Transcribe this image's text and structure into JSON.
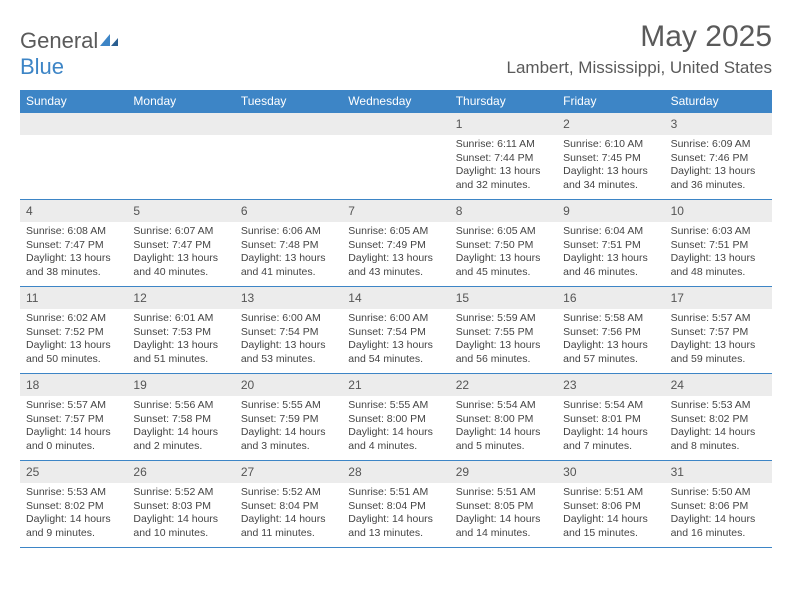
{
  "logo": {
    "general": "General",
    "blue": "Blue"
  },
  "title": "May 2025",
  "location": "Lambert, Mississippi, United States",
  "weekdays": [
    "Sunday",
    "Monday",
    "Tuesday",
    "Wednesday",
    "Thursday",
    "Friday",
    "Saturday"
  ],
  "colors": {
    "header_bg": "#3d85c6",
    "daynum_bg": "#ececec",
    "rule": "#3d85c6",
    "text": "#444444"
  },
  "weeks": [
    [
      null,
      null,
      null,
      null,
      {
        "n": "1",
        "sunrise": "6:11 AM",
        "sunset": "7:44 PM",
        "day_h": "13",
        "day_m": "32"
      },
      {
        "n": "2",
        "sunrise": "6:10 AM",
        "sunset": "7:45 PM",
        "day_h": "13",
        "day_m": "34"
      },
      {
        "n": "3",
        "sunrise": "6:09 AM",
        "sunset": "7:46 PM",
        "day_h": "13",
        "day_m": "36"
      }
    ],
    [
      {
        "n": "4",
        "sunrise": "6:08 AM",
        "sunset": "7:47 PM",
        "day_h": "13",
        "day_m": "38"
      },
      {
        "n": "5",
        "sunrise": "6:07 AM",
        "sunset": "7:47 PM",
        "day_h": "13",
        "day_m": "40"
      },
      {
        "n": "6",
        "sunrise": "6:06 AM",
        "sunset": "7:48 PM",
        "day_h": "13",
        "day_m": "41"
      },
      {
        "n": "7",
        "sunrise": "6:05 AM",
        "sunset": "7:49 PM",
        "day_h": "13",
        "day_m": "43"
      },
      {
        "n": "8",
        "sunrise": "6:05 AM",
        "sunset": "7:50 PM",
        "day_h": "13",
        "day_m": "45"
      },
      {
        "n": "9",
        "sunrise": "6:04 AM",
        "sunset": "7:51 PM",
        "day_h": "13",
        "day_m": "46"
      },
      {
        "n": "10",
        "sunrise": "6:03 AM",
        "sunset": "7:51 PM",
        "day_h": "13",
        "day_m": "48"
      }
    ],
    [
      {
        "n": "11",
        "sunrise": "6:02 AM",
        "sunset": "7:52 PM",
        "day_h": "13",
        "day_m": "50"
      },
      {
        "n": "12",
        "sunrise": "6:01 AM",
        "sunset": "7:53 PM",
        "day_h": "13",
        "day_m": "51"
      },
      {
        "n": "13",
        "sunrise": "6:00 AM",
        "sunset": "7:54 PM",
        "day_h": "13",
        "day_m": "53"
      },
      {
        "n": "14",
        "sunrise": "6:00 AM",
        "sunset": "7:54 PM",
        "day_h": "13",
        "day_m": "54"
      },
      {
        "n": "15",
        "sunrise": "5:59 AM",
        "sunset": "7:55 PM",
        "day_h": "13",
        "day_m": "56"
      },
      {
        "n": "16",
        "sunrise": "5:58 AM",
        "sunset": "7:56 PM",
        "day_h": "13",
        "day_m": "57"
      },
      {
        "n": "17",
        "sunrise": "5:57 AM",
        "sunset": "7:57 PM",
        "day_h": "13",
        "day_m": "59"
      }
    ],
    [
      {
        "n": "18",
        "sunrise": "5:57 AM",
        "sunset": "7:57 PM",
        "day_h": "14",
        "day_m": "0"
      },
      {
        "n": "19",
        "sunrise": "5:56 AM",
        "sunset": "7:58 PM",
        "day_h": "14",
        "day_m": "2"
      },
      {
        "n": "20",
        "sunrise": "5:55 AM",
        "sunset": "7:59 PM",
        "day_h": "14",
        "day_m": "3"
      },
      {
        "n": "21",
        "sunrise": "5:55 AM",
        "sunset": "8:00 PM",
        "day_h": "14",
        "day_m": "4"
      },
      {
        "n": "22",
        "sunrise": "5:54 AM",
        "sunset": "8:00 PM",
        "day_h": "14",
        "day_m": "5"
      },
      {
        "n": "23",
        "sunrise": "5:54 AM",
        "sunset": "8:01 PM",
        "day_h": "14",
        "day_m": "7"
      },
      {
        "n": "24",
        "sunrise": "5:53 AM",
        "sunset": "8:02 PM",
        "day_h": "14",
        "day_m": "8"
      }
    ],
    [
      {
        "n": "25",
        "sunrise": "5:53 AM",
        "sunset": "8:02 PM",
        "day_h": "14",
        "day_m": "9"
      },
      {
        "n": "26",
        "sunrise": "5:52 AM",
        "sunset": "8:03 PM",
        "day_h": "14",
        "day_m": "10"
      },
      {
        "n": "27",
        "sunrise": "5:52 AM",
        "sunset": "8:04 PM",
        "day_h": "14",
        "day_m": "11"
      },
      {
        "n": "28",
        "sunrise": "5:51 AM",
        "sunset": "8:04 PM",
        "day_h": "14",
        "day_m": "13"
      },
      {
        "n": "29",
        "sunrise": "5:51 AM",
        "sunset": "8:05 PM",
        "day_h": "14",
        "day_m": "14"
      },
      {
        "n": "30",
        "sunrise": "5:51 AM",
        "sunset": "8:06 PM",
        "day_h": "14",
        "day_m": "15"
      },
      {
        "n": "31",
        "sunrise": "5:50 AM",
        "sunset": "8:06 PM",
        "day_h": "14",
        "day_m": "16"
      }
    ]
  ]
}
